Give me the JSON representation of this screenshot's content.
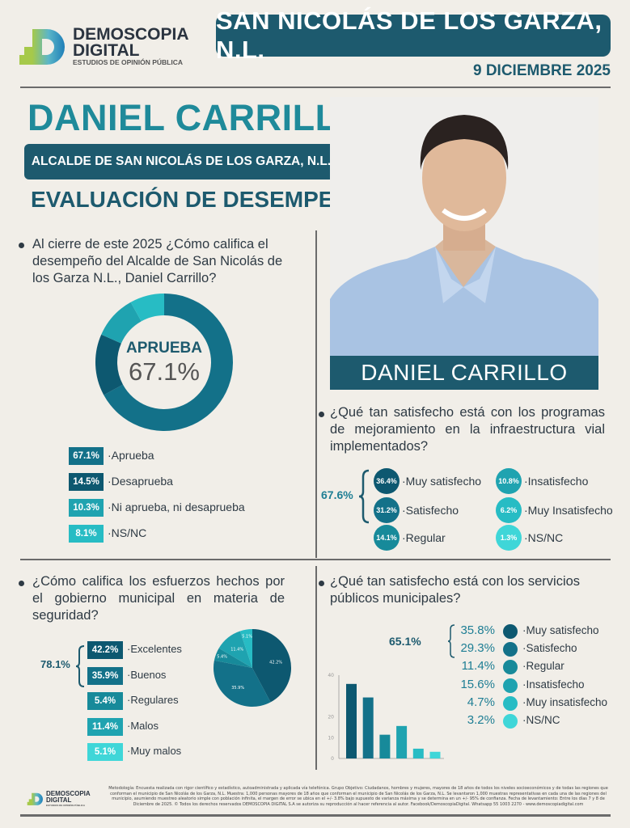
{
  "brand": {
    "name_line1": "DEMOSCOPIA",
    "name_line2": "DIGITAL",
    "tagline": "ESTUDIOS DE OPINIÓN PÚBLICA"
  },
  "header": {
    "location": "SAN NICOLÁS DE LOS GARZA, N.L.",
    "date": "9 DICIEMBRE 2025"
  },
  "subject": {
    "name": "DANIEL CARRILLO",
    "role": "ALCALDE DE SAN NICOLÁS DE LOS GARZA, N.L.",
    "section": "EVALUACIÓN DE DESEMPEÑO",
    "photo_caption": "DANIEL CARRILLO"
  },
  "colors": {
    "dark": "#1d5a6e",
    "accent": "#1f8a9a",
    "shades": [
      "#0d5870",
      "#137189",
      "#178a9a",
      "#1fa3b0",
      "#27bcc4",
      "#3fd6d8"
    ]
  },
  "chart_data": [
    {
      "type": "pie",
      "variant": "donut",
      "question": "Al cierre de este 2025 ¿Cómo califica el desempeño del Alcalde de San Nicolás de los Garza N.L., Daniel Carrillo?",
      "center_label": "APRUEBA",
      "center_value": "67.1%",
      "categories": [
        "Aprueba",
        "Desaprueba",
        "Ni aprueba, ni desaprueba",
        "NS/NC"
      ],
      "values": [
        67.1,
        14.5,
        10.3,
        8.1
      ],
      "value_labels": [
        "67.1%",
        "14.5%",
        "10.3%",
        "8.1%"
      ]
    },
    {
      "type": "table",
      "question": "¿Qué tan satisfecho está con los programas de mejoramiento en la infraestructura vial implementados?",
      "group_total": "67.6%",
      "categories": [
        "Muy satisfecho",
        "Satisfecho",
        "Regular",
        "Insatisfecho",
        "Muy Insatisfecho",
        "NS/NC"
      ],
      "values": [
        36.4,
        31.2,
        14.1,
        10.8,
        6.2,
        1.3
      ],
      "value_labels": [
        "36.4%",
        "31.2%",
        "14.1%",
        "10.8%",
        "6.2%",
        "1.3%"
      ]
    },
    {
      "type": "pie",
      "question": "¿Cómo califica los esfuerzos hechos por el gobierno municipal en materia de seguridad?",
      "group_total": "78.1%",
      "categories": [
        "Excelentes",
        "Buenos",
        "Regulares",
        "Malos",
        "Muy malos"
      ],
      "values": [
        42.2,
        35.9,
        5.4,
        11.4,
        5.1
      ],
      "value_labels": [
        "42.2%",
        "35.9%",
        "5.4%",
        "11.4%",
        "5.1%"
      ]
    },
    {
      "type": "bar",
      "question": "¿Qué tan satisfecho está con los servicios públicos municipales?",
      "group_total": "65.1%",
      "categories": [
        "Muy satisfecho",
        "Satisfecho",
        "Regular",
        "Insatisfecho",
        "Muy insatisfecho",
        "NS/NC"
      ],
      "values": [
        35.8,
        29.3,
        11.4,
        15.6,
        4.7,
        3.2
      ],
      "value_labels": [
        "35.8%",
        "29.3%",
        "11.4%",
        "15.6%",
        "4.7%",
        "3.2%"
      ],
      "ylim": [
        0,
        40
      ],
      "yticks": [
        "0",
        "10",
        "20",
        "40"
      ],
      "grid": false
    }
  ],
  "footer": {
    "text": "Metodología: Encuesta realizada con rigor científico y estadístico, autoadministrada y aplicada vía telefónica. Grupo Objetivo: Ciudadanos, hombres y mujeres, mayores de 18 años de todos los niveles socioeconómicos y de todas las regiones que conforman el municipio de San Nicolás de los Garza, N.L. Muestra: 1,000 personas mayores de 18 años que conforman el municipio de San Nicolás de los Garza, N.L. Se levantaron 1,000 muestras representativas en cada una de las regiones del municipio, asumiendo muestreo aleatorio simple con población infinita, el margen de error se ubica en el +/- 3.8% bajo supuesto de varianza máxima y se determina en un +/- 95% de confianza. Fecha de levantamiento: Entre los días 7 y 8 de Diciembre de 2025. © Todos los derechos reservados DEMOSCOPIA DIGITAL S.A se autoriza su reproducción al hacer referencia al autor. Facebook/DemoscopiaDigital. Whatsapp 55 1003 2270 - www.demoscopiadigital.com"
  }
}
